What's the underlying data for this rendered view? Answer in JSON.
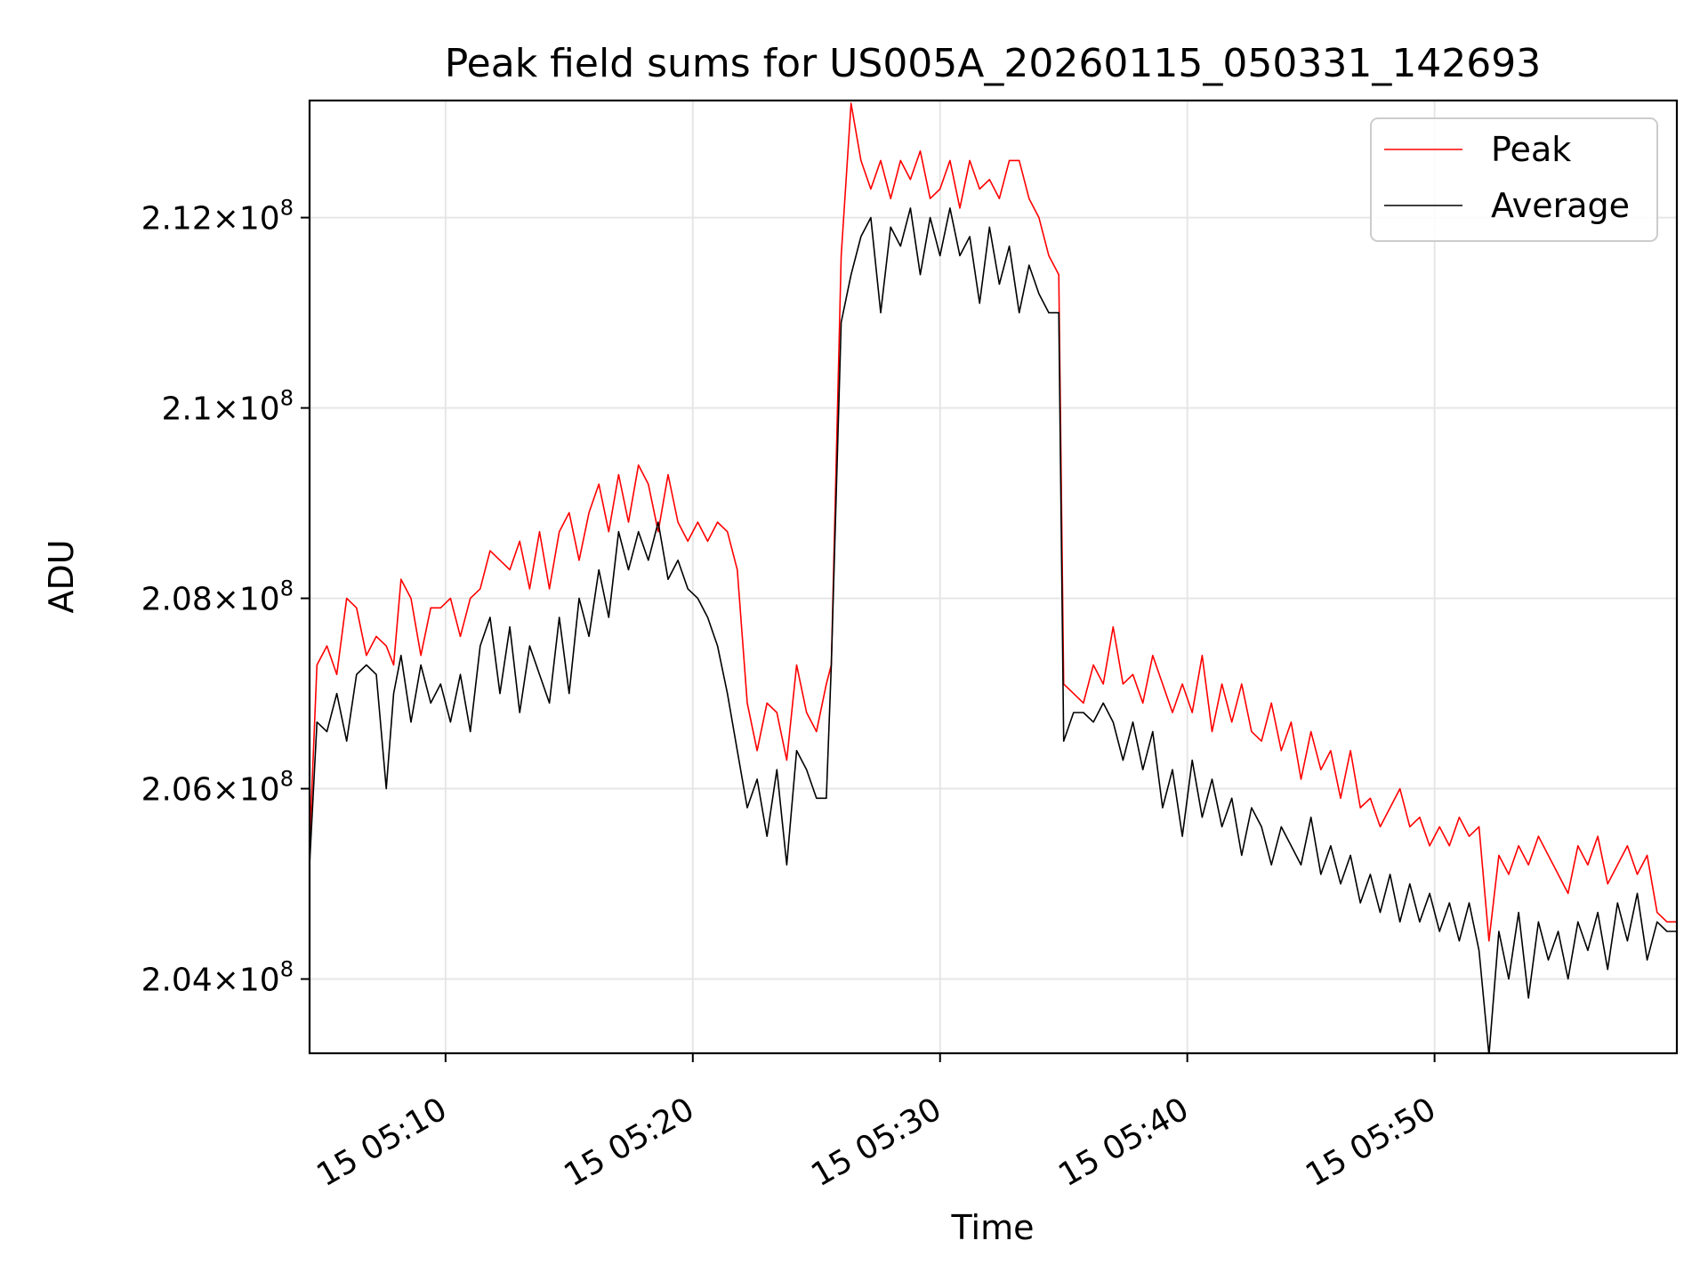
{
  "chart_data": {
    "type": "line",
    "title": "Peak field sums for US005A_20260115_050331_142693",
    "xlabel": "Time",
    "ylabel": "ADU",
    "grid": true,
    "legend_position": "top-right",
    "x_unit": "minutes after 05:00 on day 15",
    "xlim": [
      4.5,
      59.8
    ],
    "ylim": [
      203220000.0,
      213230000.0
    ],
    "x_ticks": [
      {
        "value": 10,
        "label": "15 05:10"
      },
      {
        "value": 20,
        "label": "15 05:20"
      },
      {
        "value": 30,
        "label": "15 05:30"
      },
      {
        "value": 40,
        "label": "15 05:40"
      },
      {
        "value": 50,
        "label": "15 05:50"
      }
    ],
    "y_ticks": [
      {
        "value": 204000000.0,
        "mantissa": "2.04",
        "exponent": "8"
      },
      {
        "value": 206000000.0,
        "mantissa": "2.06",
        "exponent": "8"
      },
      {
        "value": 208000000.0,
        "mantissa": "2.08",
        "exponent": "8"
      },
      {
        "value": 210000000.0,
        "mantissa": "2.1",
        "exponent": "8"
      },
      {
        "value": 212000000.0,
        "mantissa": "2.12",
        "exponent": "8"
      }
    ],
    "times_symbol": "×",
    "base": "10",
    "series": [
      {
        "name": "Peak",
        "color": "#ff0000",
        "points": [
          [
            4.5,
            2.054
          ],
          [
            4.8,
            2.073
          ],
          [
            5.2,
            2.075
          ],
          [
            5.6,
            2.072
          ],
          [
            6.0,
            2.08
          ],
          [
            6.4,
            2.079
          ],
          [
            6.8,
            2.074
          ],
          [
            7.2,
            2.076
          ],
          [
            7.6,
            2.075
          ],
          [
            7.9,
            2.073
          ],
          [
            8.2,
            2.082
          ],
          [
            8.6,
            2.08
          ],
          [
            9.0,
            2.074
          ],
          [
            9.4,
            2.079
          ],
          [
            9.8,
            2.079
          ],
          [
            10.2,
            2.08
          ],
          [
            10.6,
            2.076
          ],
          [
            11.0,
            2.08
          ],
          [
            11.4,
            2.081
          ],
          [
            11.8,
            2.085
          ],
          [
            12.2,
            2.084
          ],
          [
            12.6,
            2.083
          ],
          [
            13.0,
            2.086
          ],
          [
            13.4,
            2.081
          ],
          [
            13.8,
            2.087
          ],
          [
            14.2,
            2.081
          ],
          [
            14.6,
            2.087
          ],
          [
            15.0,
            2.089
          ],
          [
            15.4,
            2.084
          ],
          [
            15.8,
            2.089
          ],
          [
            16.2,
            2.092
          ],
          [
            16.6,
            2.087
          ],
          [
            17.0,
            2.093
          ],
          [
            17.4,
            2.088
          ],
          [
            17.8,
            2.094
          ],
          [
            18.2,
            2.092
          ],
          [
            18.6,
            2.087
          ],
          [
            19.0,
            2.093
          ],
          [
            19.4,
            2.088
          ],
          [
            19.8,
            2.086
          ],
          [
            20.2,
            2.088
          ],
          [
            20.6,
            2.086
          ],
          [
            21.0,
            2.088
          ],
          [
            21.4,
            2.087
          ],
          [
            21.8,
            2.083
          ],
          [
            22.2,
            2.069
          ],
          [
            22.6,
            2.064
          ],
          [
            23.0,
            2.069
          ],
          [
            23.4,
            2.068
          ],
          [
            23.8,
            2.063
          ],
          [
            24.2,
            2.073
          ],
          [
            24.6,
            2.068
          ],
          [
            25.0,
            2.066
          ],
          [
            25.4,
            2.071
          ],
          [
            25.6,
            2.073
          ],
          [
            26.0,
            2.116
          ],
          [
            26.4,
            2.132
          ],
          [
            26.8,
            2.126
          ],
          [
            27.2,
            2.123
          ],
          [
            27.6,
            2.126
          ],
          [
            28.0,
            2.122
          ],
          [
            28.4,
            2.126
          ],
          [
            28.8,
            2.124
          ],
          [
            29.2,
            2.127
          ],
          [
            29.6,
            2.122
          ],
          [
            30.0,
            2.123
          ],
          [
            30.4,
            2.126
          ],
          [
            30.8,
            2.121
          ],
          [
            31.2,
            2.126
          ],
          [
            31.6,
            2.123
          ],
          [
            32.0,
            2.124
          ],
          [
            32.4,
            2.122
          ],
          [
            32.8,
            2.126
          ],
          [
            33.2,
            2.126
          ],
          [
            33.6,
            2.122
          ],
          [
            34.0,
            2.12
          ],
          [
            34.4,
            2.116
          ],
          [
            34.8,
            2.114
          ],
          [
            35.0,
            2.071
          ],
          [
            35.4,
            2.07
          ],
          [
            35.8,
            2.069
          ],
          [
            36.2,
            2.073
          ],
          [
            36.6,
            2.071
          ],
          [
            37.0,
            2.077
          ],
          [
            37.4,
            2.071
          ],
          [
            37.8,
            2.072
          ],
          [
            38.2,
            2.069
          ],
          [
            38.6,
            2.074
          ],
          [
            39.0,
            2.071
          ],
          [
            39.4,
            2.068
          ],
          [
            39.8,
            2.071
          ],
          [
            40.2,
            2.068
          ],
          [
            40.6,
            2.074
          ],
          [
            41.0,
            2.066
          ],
          [
            41.4,
            2.071
          ],
          [
            41.8,
            2.067
          ],
          [
            42.2,
            2.071
          ],
          [
            42.6,
            2.066
          ],
          [
            43.0,
            2.065
          ],
          [
            43.4,
            2.069
          ],
          [
            43.8,
            2.064
          ],
          [
            44.2,
            2.067
          ],
          [
            44.6,
            2.061
          ],
          [
            45.0,
            2.066
          ],
          [
            45.4,
            2.062
          ],
          [
            45.8,
            2.064
          ],
          [
            46.2,
            2.059
          ],
          [
            46.6,
            2.064
          ],
          [
            47.0,
            2.058
          ],
          [
            47.4,
            2.059
          ],
          [
            47.8,
            2.056
          ],
          [
            48.2,
            2.058
          ],
          [
            48.6,
            2.06
          ],
          [
            49.0,
            2.056
          ],
          [
            49.4,
            2.057
          ],
          [
            49.8,
            2.054
          ],
          [
            50.2,
            2.056
          ],
          [
            50.6,
            2.054
          ],
          [
            51.0,
            2.057
          ],
          [
            51.4,
            2.055
          ],
          [
            51.8,
            2.056
          ],
          [
            52.2,
            2.044
          ],
          [
            52.6,
            2.053
          ],
          [
            53.0,
            2.051
          ],
          [
            53.4,
            2.054
          ],
          [
            53.8,
            2.052
          ],
          [
            54.2,
            2.055
          ],
          [
            54.6,
            2.053
          ],
          [
            55.0,
            2.051
          ],
          [
            55.4,
            2.049
          ],
          [
            55.8,
            2.054
          ],
          [
            56.2,
            2.052
          ],
          [
            56.6,
            2.055
          ],
          [
            57.0,
            2.05
          ],
          [
            57.4,
            2.052
          ],
          [
            57.8,
            2.054
          ],
          [
            58.2,
            2.051
          ],
          [
            58.6,
            2.053
          ],
          [
            59.0,
            2.047
          ],
          [
            59.4,
            2.046
          ],
          [
            59.8,
            2.046
          ]
        ]
      },
      {
        "name": "Average",
        "color": "#000000",
        "points": [
          [
            4.5,
            2.052
          ],
          [
            4.8,
            2.067
          ],
          [
            5.2,
            2.066
          ],
          [
            5.6,
            2.07
          ],
          [
            6.0,
            2.065
          ],
          [
            6.4,
            2.072
          ],
          [
            6.8,
            2.073
          ],
          [
            7.2,
            2.072
          ],
          [
            7.6,
            2.06
          ],
          [
            7.9,
            2.07
          ],
          [
            8.2,
            2.074
          ],
          [
            8.6,
            2.067
          ],
          [
            9.0,
            2.073
          ],
          [
            9.4,
            2.069
          ],
          [
            9.8,
            2.071
          ],
          [
            10.2,
            2.067
          ],
          [
            10.6,
            2.072
          ],
          [
            11.0,
            2.066
          ],
          [
            11.4,
            2.075
          ],
          [
            11.8,
            2.078
          ],
          [
            12.2,
            2.07
          ],
          [
            12.6,
            2.077
          ],
          [
            13.0,
            2.068
          ],
          [
            13.4,
            2.075
          ],
          [
            13.8,
            2.072
          ],
          [
            14.2,
            2.069
          ],
          [
            14.6,
            2.078
          ],
          [
            15.0,
            2.07
          ],
          [
            15.4,
            2.08
          ],
          [
            15.8,
            2.076
          ],
          [
            16.2,
            2.083
          ],
          [
            16.6,
            2.078
          ],
          [
            17.0,
            2.087
          ],
          [
            17.4,
            2.083
          ],
          [
            17.8,
            2.087
          ],
          [
            18.2,
            2.084
          ],
          [
            18.6,
            2.088
          ],
          [
            19.0,
            2.082
          ],
          [
            19.4,
            2.084
          ],
          [
            19.8,
            2.081
          ],
          [
            20.2,
            2.08
          ],
          [
            20.6,
            2.078
          ],
          [
            21.0,
            2.075
          ],
          [
            21.4,
            2.07
          ],
          [
            21.8,
            2.064
          ],
          [
            22.2,
            2.058
          ],
          [
            22.6,
            2.061
          ],
          [
            23.0,
            2.055
          ],
          [
            23.4,
            2.062
          ],
          [
            23.8,
            2.052
          ],
          [
            24.2,
            2.064
          ],
          [
            24.6,
            2.062
          ],
          [
            25.0,
            2.059
          ],
          [
            25.4,
            2.059
          ],
          [
            25.6,
            2.073
          ],
          [
            26.0,
            2.109
          ],
          [
            26.4,
            2.114
          ],
          [
            26.8,
            2.118
          ],
          [
            27.2,
            2.12
          ],
          [
            27.6,
            2.11
          ],
          [
            28.0,
            2.119
          ],
          [
            28.4,
            2.117
          ],
          [
            28.8,
            2.121
          ],
          [
            29.2,
            2.114
          ],
          [
            29.6,
            2.12
          ],
          [
            30.0,
            2.116
          ],
          [
            30.4,
            2.121
          ],
          [
            30.8,
            2.116
          ],
          [
            31.2,
            2.118
          ],
          [
            31.6,
            2.111
          ],
          [
            32.0,
            2.119
          ],
          [
            32.4,
            2.113
          ],
          [
            32.8,
            2.117
          ],
          [
            33.2,
            2.11
          ],
          [
            33.6,
            2.115
          ],
          [
            34.0,
            2.112
          ],
          [
            34.4,
            2.11
          ],
          [
            34.8,
            2.11
          ],
          [
            35.0,
            2.065
          ],
          [
            35.4,
            2.068
          ],
          [
            35.8,
            2.068
          ],
          [
            36.2,
            2.067
          ],
          [
            36.6,
            2.069
          ],
          [
            37.0,
            2.067
          ],
          [
            37.4,
            2.063
          ],
          [
            37.8,
            2.067
          ],
          [
            38.2,
            2.062
          ],
          [
            38.6,
            2.066
          ],
          [
            39.0,
            2.058
          ],
          [
            39.4,
            2.062
          ],
          [
            39.8,
            2.055
          ],
          [
            40.2,
            2.063
          ],
          [
            40.6,
            2.057
          ],
          [
            41.0,
            2.061
          ],
          [
            41.4,
            2.056
          ],
          [
            41.8,
            2.059
          ],
          [
            42.2,
            2.053
          ],
          [
            42.6,
            2.058
          ],
          [
            43.0,
            2.056
          ],
          [
            43.4,
            2.052
          ],
          [
            43.8,
            2.056
          ],
          [
            44.2,
            2.054
          ],
          [
            44.6,
            2.052
          ],
          [
            45.0,
            2.057
          ],
          [
            45.4,
            2.051
          ],
          [
            45.8,
            2.054
          ],
          [
            46.2,
            2.05
          ],
          [
            46.6,
            2.053
          ],
          [
            47.0,
            2.048
          ],
          [
            47.4,
            2.051
          ],
          [
            47.8,
            2.047
          ],
          [
            48.2,
            2.051
          ],
          [
            48.6,
            2.046
          ],
          [
            49.0,
            2.05
          ],
          [
            49.4,
            2.046
          ],
          [
            49.8,
            2.049
          ],
          [
            50.2,
            2.045
          ],
          [
            50.6,
            2.048
          ],
          [
            51.0,
            2.044
          ],
          [
            51.4,
            2.048
          ],
          [
            51.8,
            2.043
          ],
          [
            52.2,
            2.032
          ],
          [
            52.6,
            2.045
          ],
          [
            53.0,
            2.04
          ],
          [
            53.4,
            2.047
          ],
          [
            53.8,
            2.038
          ],
          [
            54.2,
            2.046
          ],
          [
            54.6,
            2.042
          ],
          [
            55.0,
            2.045
          ],
          [
            55.4,
            2.04
          ],
          [
            55.8,
            2.046
          ],
          [
            56.2,
            2.043
          ],
          [
            56.6,
            2.047
          ],
          [
            57.0,
            2.041
          ],
          [
            57.4,
            2.048
          ],
          [
            57.8,
            2.044
          ],
          [
            58.2,
            2.049
          ],
          [
            58.6,
            2.042
          ],
          [
            59.0,
            2.046
          ],
          [
            59.4,
            2.045
          ],
          [
            59.8,
            2.045
          ]
        ]
      }
    ]
  }
}
